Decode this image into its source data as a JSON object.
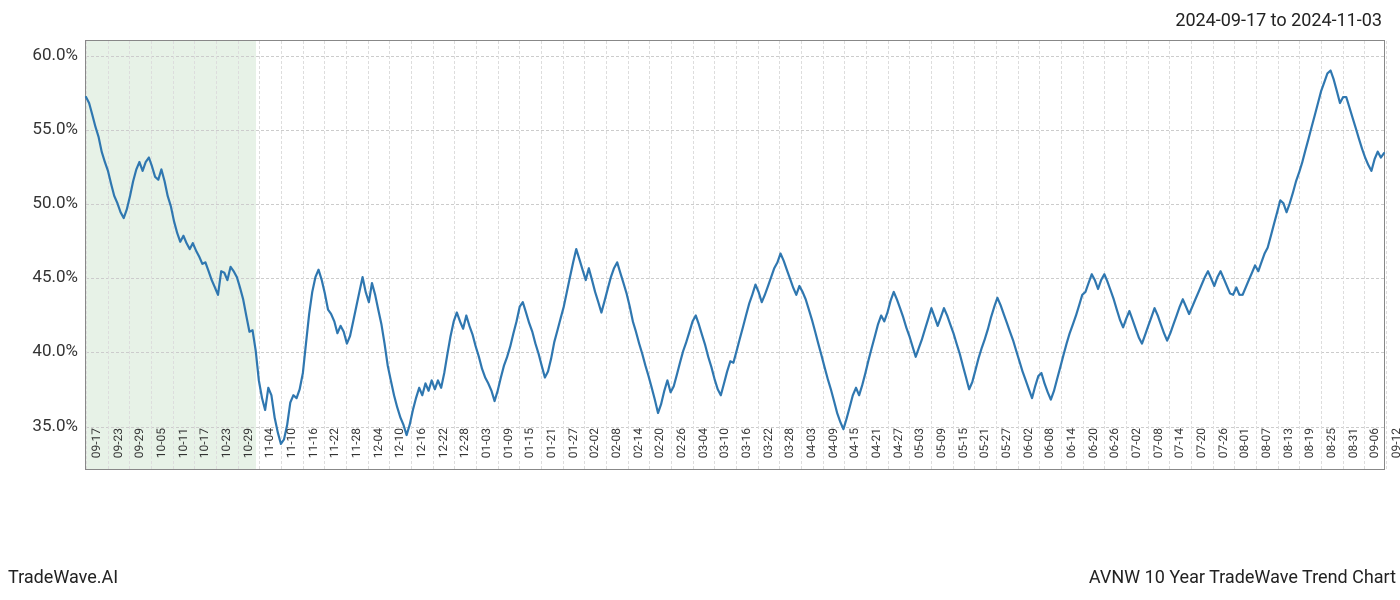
{
  "header": {
    "date_range": "2024-09-17 to 2024-11-03"
  },
  "footer": {
    "left": "TradeWave.AI",
    "right": "AVNW 10 Year TradeWave Trend Chart"
  },
  "chart": {
    "type": "line",
    "background_color": "#ffffff",
    "line_color": "#2f77b0",
    "line_width": 2.2,
    "grid_color": "#cccccc",
    "vgrid_color": "#dddddd",
    "highlight": {
      "color": "#d4e8d4",
      "opacity": 0.55,
      "x_start": 0.0,
      "x_end": 0.131
    },
    "ylim": [
      32,
      61
    ],
    "y_ticks": [
      {
        "value": 35.0,
        "label": "35.0%"
      },
      {
        "value": 40.0,
        "label": "40.0%"
      },
      {
        "value": 45.0,
        "label": "45.0%"
      },
      {
        "value": 50.0,
        "label": "50.0%"
      },
      {
        "value": 55.0,
        "label": "55.0%"
      },
      {
        "value": 60.0,
        "label": "60.0%"
      }
    ],
    "x_tick_labels": [
      "09-17",
      "09-23",
      "09-29",
      "10-05",
      "10-11",
      "10-17",
      "10-23",
      "10-29",
      "11-04",
      "11-10",
      "11-16",
      "11-22",
      "11-28",
      "12-04",
      "12-10",
      "12-16",
      "12-22",
      "12-28",
      "01-03",
      "01-09",
      "01-15",
      "01-21",
      "01-27",
      "02-02",
      "02-08",
      "02-14",
      "02-20",
      "02-26",
      "03-04",
      "03-10",
      "03-16",
      "03-22",
      "03-28",
      "04-03",
      "04-09",
      "04-15",
      "04-21",
      "04-27",
      "05-03",
      "05-09",
      "05-15",
      "05-21",
      "05-27",
      "06-02",
      "06-08",
      "06-14",
      "06-20",
      "06-26",
      "07-02",
      "07-08",
      "07-14",
      "07-20",
      "07-26",
      "08-01",
      "08-07",
      "08-13",
      "08-19",
      "08-25",
      "08-31",
      "09-06",
      "09-12"
    ],
    "values": [
      57.2,
      56.8,
      56.0,
      55.2,
      54.5,
      53.5,
      52.8,
      52.2,
      51.3,
      50.5,
      50.0,
      49.4,
      49.0,
      49.6,
      50.5,
      51.5,
      52.3,
      52.8,
      52.2,
      52.8,
      53.1,
      52.5,
      51.8,
      51.6,
      52.3,
      51.5,
      50.5,
      49.8,
      48.8,
      48.0,
      47.4,
      47.8,
      47.3,
      46.9,
      47.3,
      46.8,
      46.4,
      45.9,
      46.0,
      45.4,
      44.8,
      44.3,
      43.8,
      45.4,
      45.3,
      44.8,
      45.7,
      45.4,
      45.0,
      44.3,
      43.5,
      42.4,
      41.3,
      41.4,
      40.0,
      38.0,
      36.8,
      36.0,
      37.5,
      37.0,
      35.5,
      34.5,
      33.7,
      34.0,
      35.0,
      36.5,
      37.0,
      36.8,
      37.4,
      38.5,
      40.5,
      42.5,
      44.0,
      45.0,
      45.5,
      44.8,
      43.9,
      42.8,
      42.5,
      42.0,
      41.2,
      41.7,
      41.3,
      40.5,
      41.0,
      42.0,
      43.0,
      44.0,
      45.0,
      44.0,
      43.3,
      44.6,
      43.8,
      42.8,
      41.8,
      40.5,
      39.0,
      38.0,
      37.0,
      36.2,
      35.5,
      35.0,
      34.3,
      35.0,
      36.0,
      36.8,
      37.5,
      37.0,
      37.8,
      37.3,
      38.0,
      37.4,
      38.0,
      37.5,
      38.5,
      39.8,
      41.0,
      42.0,
      42.6,
      42.0,
      41.5,
      42.4,
      41.7,
      41.1,
      40.3,
      39.6,
      38.8,
      38.2,
      37.8,
      37.3,
      36.6,
      37.3,
      38.2,
      39.0,
      39.6,
      40.3,
      41.2,
      42.0,
      43.0,
      43.3,
      42.6,
      41.9,
      41.3,
      40.5,
      39.8,
      39.0,
      38.2,
      38.6,
      39.5,
      40.6,
      41.4,
      42.2,
      43.0,
      44.0,
      45.0,
      46.0,
      46.9,
      46.2,
      45.5,
      44.8,
      45.6,
      44.8,
      44.0,
      43.3,
      42.6,
      43.4,
      44.2,
      45.0,
      45.6,
      46.0,
      45.3,
      44.6,
      43.9,
      43.0,
      42.0,
      41.3,
      40.5,
      39.8,
      39.0,
      38.3,
      37.5,
      36.7,
      35.8,
      36.4,
      37.3,
      38.0,
      37.2,
      37.6,
      38.4,
      39.2,
      40.0,
      40.6,
      41.3,
      42.0,
      42.4,
      41.8,
      41.1,
      40.4,
      39.6,
      38.9,
      38.1,
      37.4,
      37.0,
      37.8,
      38.6,
      39.3,
      39.2,
      40.0,
      40.8,
      41.6,
      42.4,
      43.2,
      43.8,
      44.5,
      44.0,
      43.3,
      43.8,
      44.4,
      45.0,
      45.6,
      46.0,
      46.6,
      46.1,
      45.5,
      44.9,
      44.3,
      43.8,
      44.4,
      44.0,
      43.5,
      42.8,
      42.1,
      41.3,
      40.5,
      39.7,
      38.9,
      38.1,
      37.4,
      36.6,
      35.8,
      35.2,
      34.7,
      35.4,
      36.2,
      37.0,
      37.5,
      37.0,
      37.7,
      38.5,
      39.4,
      40.2,
      41.0,
      41.8,
      42.4,
      42.0,
      42.6,
      43.4,
      44.0,
      43.5,
      42.9,
      42.3,
      41.6,
      41.0,
      40.3,
      39.6,
      40.2,
      40.8,
      41.5,
      42.2,
      42.9,
      42.3,
      41.7,
      42.3,
      42.9,
      42.4,
      41.8,
      41.2,
      40.5,
      39.8,
      39.0,
      38.2,
      37.4,
      37.9,
      38.7,
      39.5,
      40.2,
      40.8,
      41.5,
      42.3,
      43.0,
      43.6,
      43.1,
      42.5,
      41.9,
      41.3,
      40.7,
      40.0,
      39.3,
      38.6,
      38.0,
      37.4,
      36.8,
      37.6,
      38.3,
      38.5,
      37.8,
      37.2,
      36.7,
      37.3,
      38.1,
      38.9,
      39.7,
      40.5,
      41.2,
      41.8,
      42.4,
      43.1,
      43.8,
      44.0,
      44.6,
      45.2,
      44.8,
      44.2,
      44.8,
      45.2,
      44.7,
      44.1,
      43.5,
      42.8,
      42.1,
      41.6,
      42.2,
      42.7,
      42.1,
      41.5,
      40.9,
      40.5,
      41.1,
      41.7,
      42.3,
      42.9,
      42.4,
      41.8,
      41.2,
      40.7,
      41.2,
      41.8,
      42.4,
      43.0,
      43.5,
      43.0,
      42.5,
      43.0,
      43.5,
      44.0,
      44.5,
      45.0,
      45.4,
      44.9,
      44.4,
      45.0,
      45.4,
      44.9,
      44.4,
      43.9,
      43.8,
      44.3,
      43.8,
      43.8,
      44.3,
      44.8,
      45.3,
      45.8,
      45.4,
      46.0,
      46.6,
      47.0,
      47.8,
      48.6,
      49.4,
      50.2,
      50.0,
      49.4,
      50.0,
      50.7,
      51.5,
      52.1,
      52.8,
      53.6,
      54.4,
      55.2,
      56.0,
      56.8,
      57.6,
      58.2,
      58.8,
      59.0,
      58.4,
      57.6,
      56.8,
      57.2,
      57.2,
      56.5,
      55.8,
      55.1,
      54.4,
      53.7,
      53.1,
      52.6,
      52.2,
      53.0,
      53.5,
      53.1,
      53.4
    ],
    "axis_label_fontsize": 17,
    "xtick_label_fontsize": 12
  }
}
